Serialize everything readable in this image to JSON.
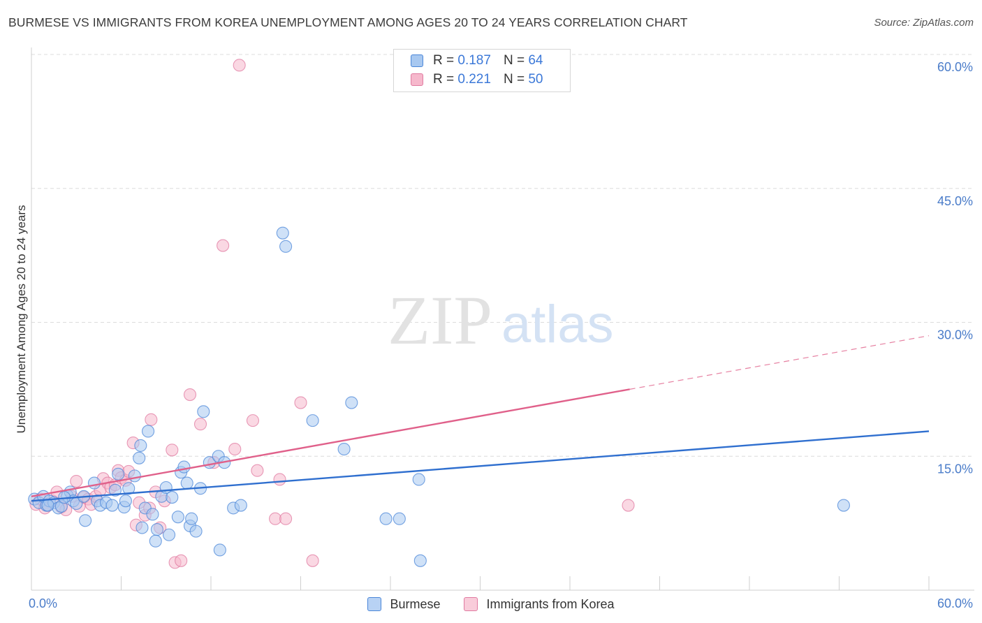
{
  "title": "BURMESE VS IMMIGRANTS FROM KOREA UNEMPLOYMENT AMONG AGES 20 TO 24 YEARS CORRELATION CHART",
  "source": "Source: ZipAtlas.com",
  "watermark": {
    "zip": "ZIP",
    "atlas": "atlas"
  },
  "legend": {
    "rows": [
      {
        "r_label": "R =",
        "r_value": "0.187",
        "n_label": "N =",
        "n_value": "64"
      },
      {
        "r_label": "R =",
        "r_value": "0.221",
        "n_label": "N =",
        "n_value": "50"
      }
    ]
  },
  "bottom_legend": [
    "Burmese",
    "Immigrants from Korea"
  ],
  "colors": {
    "burmese_fill": "#a8c8f0",
    "burmese_stroke": "#4a86d8",
    "burmese_line": "#2f6fcf",
    "korea_fill": "#f6b8cc",
    "korea_stroke": "#e07aa0",
    "korea_line": "#e0608a",
    "grid": "#dcdcdc",
    "tick_text": "#4a7cc9"
  },
  "chart_data": {
    "type": "scatter",
    "title": "BURMESE VS IMMIGRANTS FROM KOREA UNEMPLOYMENT AMONG AGES 20 TO 24 YEARS CORRELATION CHART",
    "xlabel": "",
    "ylabel": "Unemployment Among Ages 20 to 24 years",
    "xlim": [
      0,
      60
    ],
    "ylim": [
      0,
      60
    ],
    "x_tick_labels": [
      "0.0%",
      "60.0%"
    ],
    "y_ticks": [
      15,
      30,
      45,
      60
    ],
    "y_tick_labels": [
      "15.0%",
      "30.0%",
      "45.0%",
      "60.0%"
    ],
    "x_minor_ticks": [
      0,
      6,
      12,
      18,
      24,
      30,
      36,
      42,
      48,
      54,
      60
    ],
    "series": [
      {
        "name": "Burmese",
        "r": 0.187,
        "n": 64,
        "trend": {
          "x0": 0,
          "y0": 10.0,
          "x1": 60,
          "y1": 17.8,
          "solid_until": 60
        },
        "points": [
          [
            0.2,
            10.2
          ],
          [
            0.5,
            9.8
          ],
          [
            0.8,
            10.5
          ],
          [
            1.0,
            9.5
          ],
          [
            1.2,
            10.0
          ],
          [
            1.5,
            9.8
          ],
          [
            1.8,
            9.2
          ],
          [
            2.0,
            9.4
          ],
          [
            2.4,
            10.6
          ],
          [
            2.6,
            11.0
          ],
          [
            2.8,
            10.0
          ],
          [
            3.0,
            9.7
          ],
          [
            3.5,
            10.5
          ],
          [
            3.6,
            7.8
          ],
          [
            4.2,
            12.0
          ],
          [
            4.4,
            10.0
          ],
          [
            4.6,
            9.5
          ],
          [
            5.0,
            9.8
          ],
          [
            5.4,
            9.5
          ],
          [
            5.6,
            11.2
          ],
          [
            5.8,
            13.0
          ],
          [
            6.2,
            9.3
          ],
          [
            6.3,
            10.0
          ],
          [
            6.5,
            11.4
          ],
          [
            6.9,
            12.8
          ],
          [
            7.2,
            14.8
          ],
          [
            7.3,
            16.2
          ],
          [
            7.4,
            7.0
          ],
          [
            7.6,
            9.2
          ],
          [
            7.8,
            17.8
          ],
          [
            8.1,
            8.5
          ],
          [
            8.3,
            5.5
          ],
          [
            8.4,
            6.8
          ],
          [
            8.7,
            10.5
          ],
          [
            9.0,
            11.5
          ],
          [
            9.2,
            6.2
          ],
          [
            9.4,
            10.4
          ],
          [
            9.8,
            8.2
          ],
          [
            10.0,
            13.2
          ],
          [
            10.2,
            13.8
          ],
          [
            10.4,
            12.0
          ],
          [
            10.6,
            7.2
          ],
          [
            10.7,
            8.0
          ],
          [
            11.0,
            6.6
          ],
          [
            11.3,
            11.4
          ],
          [
            11.5,
            20.0
          ],
          [
            11.9,
            14.3
          ],
          [
            12.5,
            15.0
          ],
          [
            12.6,
            4.5
          ],
          [
            12.9,
            14.3
          ],
          [
            13.5,
            9.2
          ],
          [
            14.0,
            9.5
          ],
          [
            16.8,
            40.0
          ],
          [
            17.0,
            38.5
          ],
          [
            18.8,
            19.0
          ],
          [
            20.9,
            15.8
          ],
          [
            21.4,
            21.0
          ],
          [
            23.7,
            8.0
          ],
          [
            24.6,
            8.0
          ],
          [
            25.9,
            12.4
          ],
          [
            26.0,
            3.3
          ],
          [
            54.3,
            9.5
          ],
          [
            1.1,
            9.5
          ],
          [
            2.2,
            10.4
          ]
        ]
      },
      {
        "name": "Immigrants from Korea",
        "r": 0.221,
        "n": 50,
        "trend": {
          "x0": 0,
          "y0": 10.5,
          "x1": 60,
          "y1": 28.5,
          "solid_until": 40
        },
        "points": [
          [
            0.3,
            9.6
          ],
          [
            0.6,
            10.2
          ],
          [
            0.9,
            9.2
          ],
          [
            1.1,
            9.5
          ],
          [
            1.4,
            10.0
          ],
          [
            1.7,
            11.0
          ],
          [
            2.0,
            9.3
          ],
          [
            2.3,
            9.0
          ],
          [
            2.7,
            10.5
          ],
          [
            3.0,
            12.2
          ],
          [
            3.2,
            9.4
          ],
          [
            3.5,
            10.4
          ],
          [
            3.8,
            10.2
          ],
          [
            4.0,
            9.6
          ],
          [
            4.3,
            10.5
          ],
          [
            4.6,
            11.2
          ],
          [
            4.8,
            12.5
          ],
          [
            5.1,
            12.0
          ],
          [
            5.3,
            11.5
          ],
          [
            5.6,
            11.8
          ],
          [
            5.8,
            13.4
          ],
          [
            6.0,
            12.6
          ],
          [
            6.3,
            12.3
          ],
          [
            6.5,
            13.3
          ],
          [
            6.8,
            16.5
          ],
          [
            7.0,
            7.3
          ],
          [
            7.2,
            9.8
          ],
          [
            7.6,
            8.4
          ],
          [
            7.9,
            9.2
          ],
          [
            8.0,
            19.1
          ],
          [
            8.3,
            11.0
          ],
          [
            8.6,
            7.0
          ],
          [
            8.9,
            10.0
          ],
          [
            9.4,
            15.7
          ],
          [
            9.6,
            3.1
          ],
          [
            10.0,
            3.3
          ],
          [
            10.6,
            21.9
          ],
          [
            11.3,
            18.6
          ],
          [
            12.2,
            14.3
          ],
          [
            12.8,
            38.6
          ],
          [
            13.6,
            15.8
          ],
          [
            13.9,
            58.8
          ],
          [
            14.8,
            19.0
          ],
          [
            15.1,
            13.4
          ],
          [
            16.3,
            8.0
          ],
          [
            16.6,
            12.4
          ],
          [
            17.0,
            8.0
          ],
          [
            18.0,
            21.0
          ],
          [
            18.8,
            3.3
          ],
          [
            39.9,
            9.5
          ]
        ]
      }
    ]
  }
}
